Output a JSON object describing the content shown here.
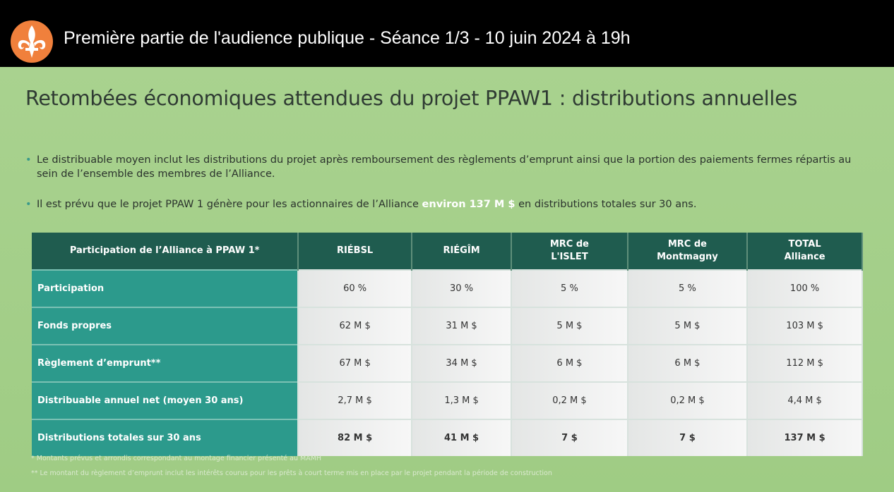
{
  "header": {
    "title": "Première partie de l'audience publique - Séance 1/3 - 10 juin 2024 à 19h"
  },
  "slide": {
    "title": "Retombées économiques attendues du projet PPAW1 : distributions annuelles",
    "bullets": [
      {
        "text": "Le distribuable moyen inclut les distributions du projet après remboursement des règlements d’emprunt ainsi que la portion des paiements fermes répartis au sein de l’ensemble des membres de l’Alliance."
      },
      {
        "before": "Il est prévu que le projet PPAW 1 génère pour les actionnaires de l’Alliance",
        "highlight": "environ 137 M $",
        "after": "en distributions totales sur 30 ans."
      }
    ],
    "table": {
      "header": [
        "Participation de l’Alliance à PPAW 1*",
        "RIÉBSL",
        "RIÉGÎM",
        "MRC de\nL'ISLET",
        "MRC de\nMontmagny",
        "TOTAL\nAlliance"
      ],
      "rows": [
        [
          "Participation",
          "60 %",
          "30 %",
          "5 %",
          "5 %",
          "100 %"
        ],
        [
          "Fonds propres",
          "62 M $",
          "31 M $",
          "5 M $",
          "5 M $",
          "103 M $"
        ],
        [
          "Règlement d’emprunt**",
          "67 M $",
          "34 M  $",
          "6 M $",
          "6 M $",
          "112 M $"
        ],
        [
          "Distribuable annuel net (moyen 30 ans)",
          "2,7 M $",
          "1,3 M $",
          "0,2 M $",
          "0,2 M $",
          "4,4 M $"
        ],
        [
          "Distributions totales sur 30 ans",
          "82 M $",
          "41 M $",
          "7 $",
          "7 $",
          "137 M $"
        ]
      ]
    },
    "footnotes": [
      "*   Montants prévus et arrondis correspondant au montage financier présenté au MAMH",
      "** Le montant du règlement d’emprunt inclut les intérêts courus pour les prêts à court terme mis en place par le projet pendant la période de construction"
    ]
  }
}
